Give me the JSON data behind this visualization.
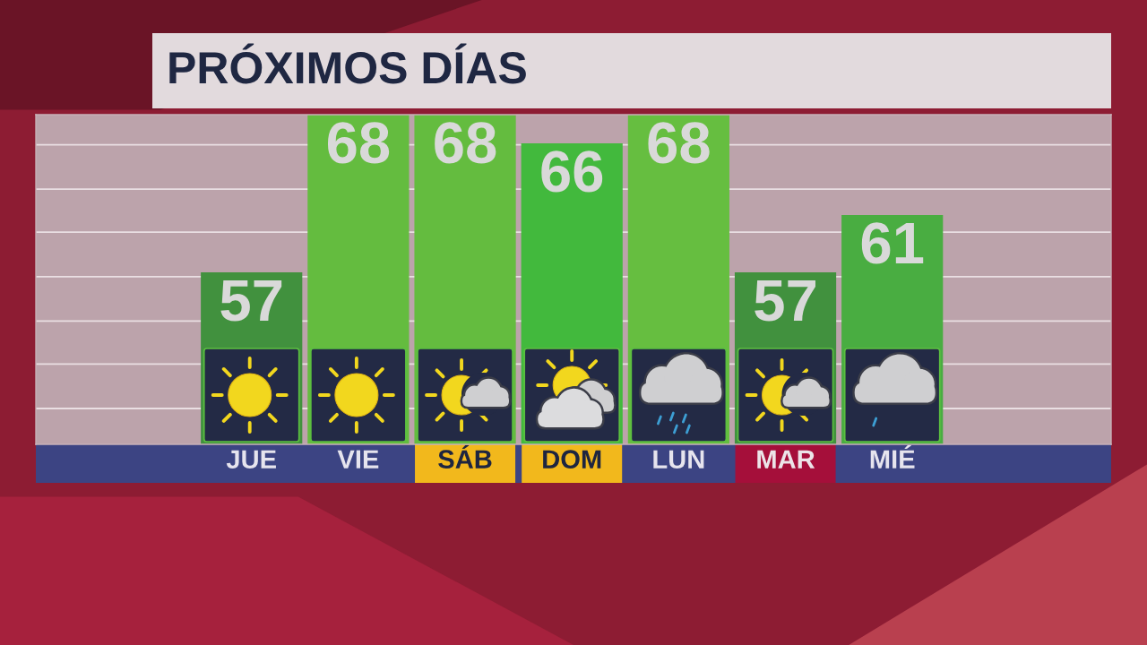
{
  "chart_data": {
    "type": "bar",
    "title": "PRÓXIMOS DÍAS",
    "categories": [
      "JUE",
      "VIE",
      "SÁB",
      "DOM",
      "LUN",
      "MAR",
      "MIÉ"
    ],
    "values": [
      57,
      68,
      68,
      66,
      68,
      57,
      61
    ],
    "colors": [
      "#41913e",
      "#64bc3f",
      "#64bc3f",
      "#42b93d",
      "#66be40",
      "#41913e",
      "#49ad41"
    ],
    "data_labels": true,
    "ylim": [
      45,
      68
    ],
    "yticks": [
      {
        "value": 47.5,
        "label": null
      },
      {
        "value": 50.6,
        "label": null
      },
      {
        "value": 53.6,
        "label": null
      },
      {
        "value": 56.7,
        "label": null
      },
      {
        "value": 59.8,
        "label": null
      },
      {
        "value": 62.8,
        "label": null
      },
      {
        "value": 65.9,
        "label": null
      }
    ],
    "grid": "y",
    "tick_labels": "x"
  }
}
